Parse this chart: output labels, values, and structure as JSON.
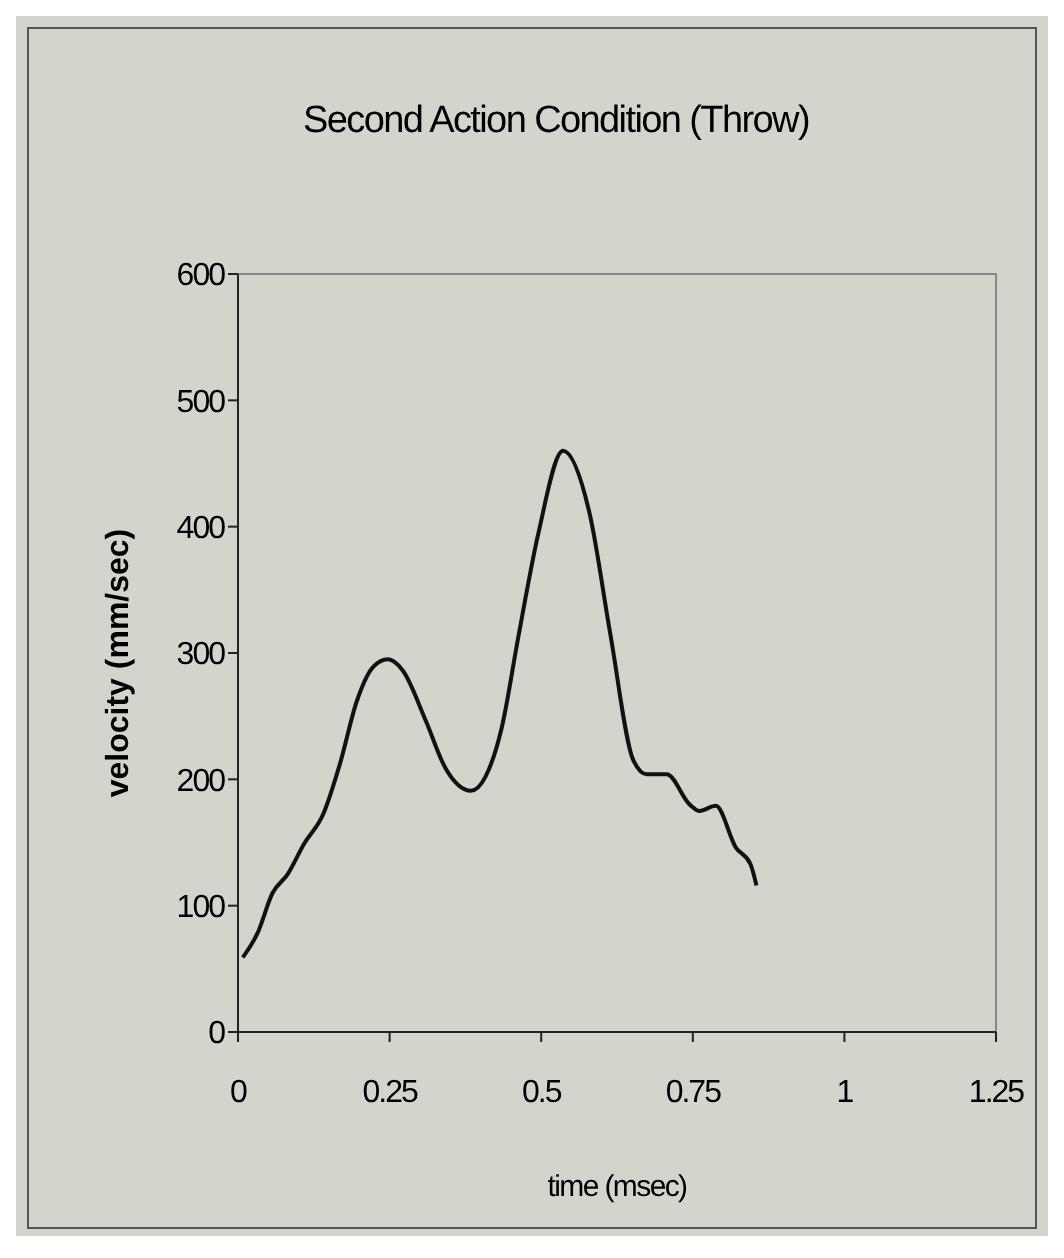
{
  "chart_data": {
    "type": "line",
    "title": "Second Action Condition (Throw)",
    "xlabel": "time (msec)",
    "ylabel": "velocity (mm/sec)",
    "x": [
      0.008,
      0.032,
      0.057,
      0.082,
      0.109,
      0.141,
      0.168,
      0.196,
      0.223,
      0.247,
      0.272,
      0.31,
      0.342,
      0.384,
      0.408,
      0.435,
      0.462,
      0.495,
      0.536,
      0.58,
      0.614,
      0.652,
      0.674,
      0.707,
      0.745,
      0.761,
      0.788,
      0.821,
      0.845,
      0.855
    ],
    "series": [
      {
        "color": "#111111",
        "values": [
          59,
          78,
          110,
          125,
          149,
          173,
          212,
          262,
          289,
          295,
          286,
          246,
          209,
          191,
          202,
          241,
          312,
          394,
          460,
          410,
          315,
          215,
          204,
          204,
          180,
          175,
          179,
          146,
          133,
          116
        ]
      }
    ],
    "xlim": [
      0,
      1.25
    ],
    "xticks": [
      0,
      0.25,
      0.5,
      0.75,
      1,
      1.25
    ],
    "ylim": [
      0,
      600
    ],
    "yticks": [
      0,
      100,
      200,
      300,
      400,
      500,
      600
    ],
    "grid": false,
    "marker": "none",
    "line_style": "solid"
  }
}
